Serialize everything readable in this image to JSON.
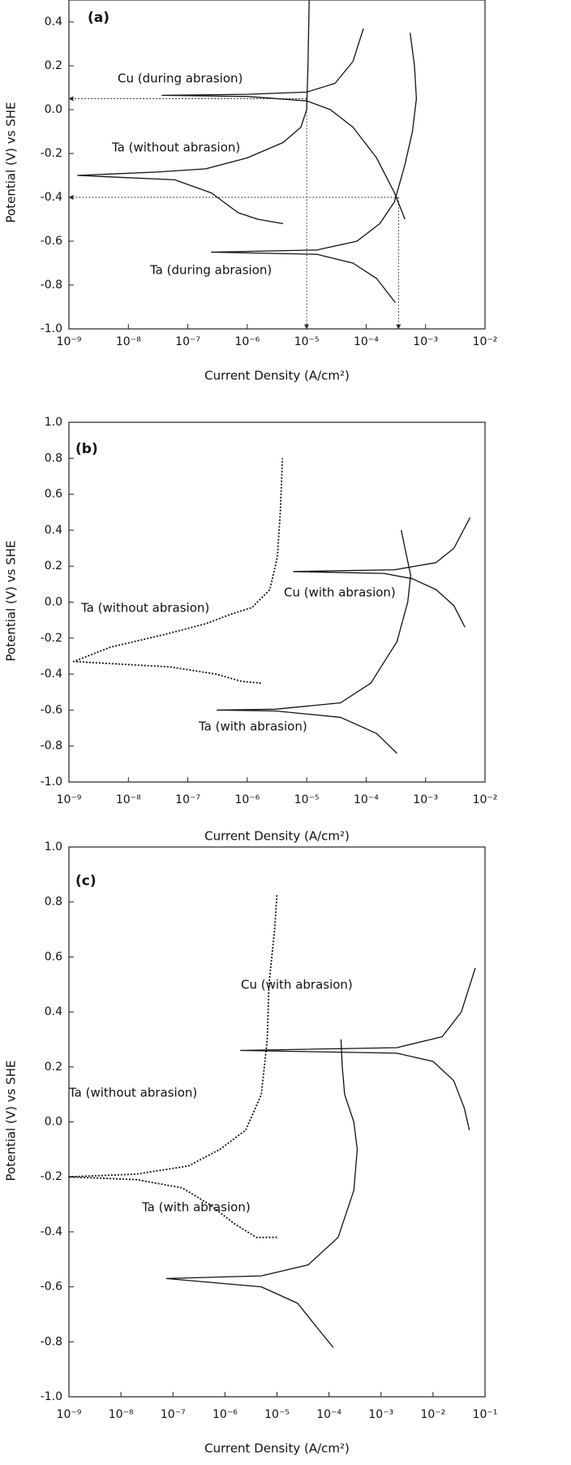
{
  "chart_data": [
    {
      "type": "line",
      "panel_label": "(a)",
      "xlabel": "Current Density (A/cm²)",
      "ylabel": "Potential (V) vs SHE",
      "xscale": "log",
      "xlim": [
        1e-09,
        0.01
      ],
      "ylim": [
        -1.0,
        0.5
      ],
      "xticks": [
        {
          "value": 1e-09,
          "label": "10⁻⁹"
        },
        {
          "value": 1e-08,
          "label": "10⁻⁸"
        },
        {
          "value": 1e-07,
          "label": "10⁻⁷"
        },
        {
          "value": 1e-06,
          "label": "10⁻⁶"
        },
        {
          "value": 1e-05,
          "label": "10⁻⁵"
        },
        {
          "value": 0.0001,
          "label": "10⁻⁴"
        },
        {
          "value": 0.001,
          "label": "10⁻³"
        },
        {
          "value": 0.01,
          "label": "10⁻²"
        }
      ],
      "yticks": [
        {
          "value": -1.0,
          "label": "-1.0"
        },
        -0.8,
        -0.6,
        -0.4,
        -0.2,
        {
          "value": 0,
          "label": "0.0"
        },
        0.2,
        0.4
      ],
      "series": [
        {
          "name": "Cu (during abrasion)",
          "color": "#111111",
          "style": "solid",
          "x": [
            0.00045,
            0.0003,
            0.00015,
            6e-05,
            2.5e-05,
            1e-05,
            1e-06,
            3.7e-08,
            1e-06,
            1e-05,
            3e-05,
            6e-05,
            9e-05
          ],
          "values": [
            -0.5,
            -0.38,
            -0.22,
            -0.08,
            0.0,
            0.04,
            0.06,
            0.065,
            0.07,
            0.08,
            0.12,
            0.22,
            0.37
          ]
        },
        {
          "name": "Ta (without abrasion)",
          "color": "#111111",
          "style": "solid",
          "x": [
            4e-06,
            1.5e-06,
            7e-07,
            2.5e-07,
            6e-08,
            1.4e-09,
            3e-08,
            2e-07,
            1e-06,
            4e-06,
            8e-06,
            1e-05,
            1.05e-05,
            1.1e-05
          ],
          "values": [
            -0.52,
            -0.5,
            -0.47,
            -0.38,
            -0.32,
            -0.3,
            -0.285,
            -0.27,
            -0.22,
            -0.15,
            -0.08,
            0.0,
            0.2,
            0.5
          ]
        },
        {
          "name": "Ta (during abrasion)",
          "color": "#111111",
          "style": "solid",
          "x": [
            0.00031,
            0.00015,
            6e-05,
            1.5e-05,
            2.5e-07,
            1.5e-05,
            7e-05,
            0.00017,
            0.0003,
            0.00045,
            0.0006,
            0.0007,
            0.00065,
            0.00055
          ],
          "values": [
            -0.88,
            -0.77,
            -0.7,
            -0.66,
            -0.65,
            -0.64,
            -0.6,
            -0.52,
            -0.42,
            -0.25,
            -0.1,
            0.05,
            0.2,
            0.35
          ]
        }
      ],
      "guides": [
        {
          "x": [
            1e-05,
            1e-09
          ],
          "values": [
            0.05,
            0.05
          ]
        },
        {
          "x": [
            0.00035,
            1e-09
          ],
          "values": [
            -0.4,
            -0.4
          ]
        },
        {
          "x": [
            1e-05,
            1e-05
          ],
          "values": [
            0.05,
            -1.0
          ]
        },
        {
          "x": [
            0.00035,
            0.00035
          ],
          "values": [
            -0.4,
            -1.0
          ]
        }
      ]
    },
    {
      "type": "line",
      "panel_label": "(b)",
      "xlabel": "Current Density (A/cm²)",
      "ylabel": "Potential (V) vs SHE",
      "xscale": "log",
      "xlim": [
        1e-09,
        0.01
      ],
      "ylim": [
        -1.0,
        1.0
      ],
      "xticks": [
        {
          "value": 1e-09,
          "label": "10⁻⁹"
        },
        {
          "value": 1e-08,
          "label": "10⁻⁸"
        },
        {
          "value": 1e-07,
          "label": "10⁻⁷"
        },
        {
          "value": 1e-06,
          "label": "10⁻⁶"
        },
        {
          "value": 1e-05,
          "label": "10⁻⁵"
        },
        {
          "value": 0.0001,
          "label": "10⁻⁴"
        },
        {
          "value": 0.001,
          "label": "10⁻³"
        },
        {
          "value": 0.01,
          "label": "10⁻²"
        }
      ],
      "yticks": [
        {
          "value": -1.0,
          "label": "-1.0"
        },
        -0.8,
        -0.6,
        -0.4,
        -0.2,
        {
          "value": 0,
          "label": "0.0"
        },
        0.2,
        0.4,
        0.6,
        0.8,
        {
          "value": 1.0,
          "label": "1.0"
        }
      ],
      "series": [
        {
          "name": "Cu (with abrasion)",
          "color": "#111111",
          "style": "solid",
          "x": [
            0.0046,
            0.003,
            0.0015,
            0.0006,
            0.0002,
            6e-06,
            0.0003,
            0.0015,
            0.003,
            0.0056
          ],
          "values": [
            -0.14,
            -0.02,
            0.07,
            0.13,
            0.16,
            0.17,
            0.18,
            0.22,
            0.3,
            0.47
          ]
        },
        {
          "name": "Ta (without abrasion)",
          "color": "#111111",
          "style": "dotted",
          "x": [
            1.7e-06,
            8e-07,
            3e-07,
            5e-08,
            1.2e-09,
            5e-09,
            4e-08,
            2e-07,
            5e-07,
            1.2e-06,
            2.4e-06,
            3.2e-06,
            3.6e-06,
            3.9e-06
          ],
          "values": [
            -0.45,
            -0.44,
            -0.4,
            -0.36,
            -0.33,
            -0.25,
            -0.18,
            -0.12,
            -0.07,
            -0.03,
            0.07,
            0.25,
            0.5,
            0.8
          ]
        },
        {
          "name": "Ta (with abrasion)",
          "color": "#111111",
          "style": "solid",
          "x": [
            0.00033,
            0.00015,
            3.7e-05,
            3e-06,
            3.1e-07,
            3e-06,
            3.7e-05,
            0.00012,
            0.00033,
            0.0005,
            0.00056,
            0.00045,
            0.00039
          ],
          "values": [
            -0.84,
            -0.73,
            -0.64,
            -0.605,
            -0.6,
            -0.595,
            -0.56,
            -0.45,
            -0.22,
            0.0,
            0.15,
            0.3,
            0.4
          ]
        }
      ]
    },
    {
      "type": "line",
      "panel_label": "(c)",
      "xlabel": "Current Density (A/cm²)",
      "ylabel": "Potential (V) vs SHE",
      "xscale": "log",
      "xlim": [
        1e-09,
        0.1
      ],
      "ylim": [
        -1.0,
        1.0
      ],
      "xticks": [
        {
          "value": 1e-09,
          "label": "10⁻⁹"
        },
        {
          "value": 1e-08,
          "label": "10⁻⁸"
        },
        {
          "value": 1e-07,
          "label": "10⁻⁷"
        },
        {
          "value": 1e-06,
          "label": "10⁻⁶"
        },
        {
          "value": 1e-05,
          "label": "10⁻⁵"
        },
        {
          "value": 0.0001,
          "label": "10⁻⁴"
        },
        {
          "value": 0.001,
          "label": "10⁻³"
        },
        {
          "value": 0.01,
          "label": "10⁻²"
        },
        {
          "value": 0.1,
          "label": "10⁻¹"
        }
      ],
      "yticks": [
        {
          "value": -1.0,
          "label": "-1.0"
        },
        -0.8,
        -0.6,
        -0.4,
        -0.2,
        {
          "value": 0,
          "label": "0.0"
        },
        0.2,
        0.4,
        0.6,
        0.8,
        {
          "value": 1.0,
          "label": "1.0"
        }
      ],
      "series": [
        {
          "name": "Cu (with abrasion)",
          "color": "#111111",
          "style": "solid",
          "x": [
            0.05,
            0.04,
            0.025,
            0.01,
            0.002,
            2e-06,
            0.002,
            0.015,
            0.035,
            0.065
          ],
          "values": [
            -0.03,
            0.05,
            0.15,
            0.22,
            0.25,
            0.26,
            0.27,
            0.31,
            0.4,
            0.56
          ]
        },
        {
          "name": "Ta (without abrasion)",
          "color": "#111111",
          "style": "dotted",
          "x": [
            1e-05,
            4e-06,
            1.5e-06,
            5e-07,
            1.5e-07,
            2e-08,
            1e-09,
            2e-08,
            2e-07,
            8e-07,
            2.5e-06,
            5e-06,
            6.5e-06,
            7e-06,
            9e-06,
            1e-05
          ],
          "values": [
            -0.42,
            -0.42,
            -0.37,
            -0.3,
            -0.24,
            -0.21,
            -0.2,
            -0.19,
            -0.16,
            -0.1,
            -0.03,
            0.1,
            0.3,
            0.5,
            0.7,
            0.83
          ]
        },
        {
          "name": "Ta (with abrasion)",
          "color": "#111111",
          "style": "solid",
          "x": [
            0.00012,
            6e-05,
            2.5e-05,
            5e-06,
            7.5e-08,
            5e-06,
            4e-05,
            0.00015,
            0.0003,
            0.00035,
            0.0003,
            0.0002,
            0.00018,
            0.00017
          ],
          "values": [
            -0.82,
            -0.75,
            -0.66,
            -0.6,
            -0.57,
            -0.56,
            -0.52,
            -0.42,
            -0.25,
            -0.1,
            0.0,
            0.1,
            0.2,
            0.3
          ]
        }
      ]
    }
  ]
}
